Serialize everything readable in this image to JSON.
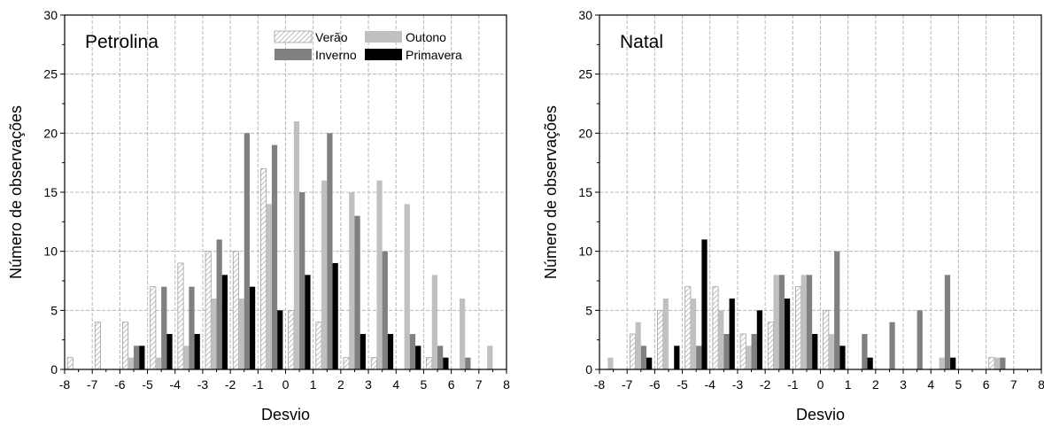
{
  "chart_data": [
    {
      "type": "bar",
      "title": "Petrolina",
      "xlabel": "Desvio",
      "ylabel": "Número de observações",
      "xlim": [
        -8,
        8
      ],
      "ylim": [
        0,
        30
      ],
      "xticks": [
        "-8",
        "-7",
        "-6",
        "-5",
        "-4",
        "-3",
        "-2",
        "-1",
        "0",
        "1",
        "2",
        "3",
        "4",
        "5",
        "6",
        "7",
        "8"
      ],
      "yticks": [
        "0",
        "5",
        "10",
        "15",
        "20",
        "25",
        "30"
      ],
      "grid": true,
      "legend_position": "top-right",
      "bin_centers": [
        -7.5,
        -6.5,
        -5.5,
        -4.5,
        -3.5,
        -2.5,
        -1.5,
        -0.5,
        0.5,
        1.5,
        2.5,
        3.5,
        4.5,
        5.5,
        6.5,
        7.5
      ],
      "series": [
        {
          "name": "Verão",
          "values": [
            1,
            4,
            4,
            7,
            9,
            10,
            10,
            17,
            5,
            4,
            1,
            1,
            0,
            1,
            0,
            0
          ]
        },
        {
          "name": "Outono",
          "values": [
            0,
            0,
            1,
            1,
            2,
            6,
            6,
            14,
            21,
            16,
            15,
            16,
            14,
            8,
            6,
            2
          ]
        },
        {
          "name": "Inverno",
          "values": [
            0,
            0,
            2,
            7,
            7,
            11,
            20,
            19,
            15,
            20,
            13,
            10,
            3,
            2,
            1,
            0
          ]
        },
        {
          "name": "Primavera",
          "values": [
            0,
            0,
            2,
            3,
            3,
            8,
            7,
            5,
            8,
            9,
            3,
            3,
            2,
            1,
            0,
            0
          ]
        }
      ]
    },
    {
      "type": "bar",
      "title": "Natal",
      "xlabel": "Desvio",
      "ylabel": "Número de observações",
      "xlim": [
        -8,
        8
      ],
      "ylim": [
        0,
        30
      ],
      "xticks": [
        "-8",
        "-7",
        "-6",
        "-5",
        "-4",
        "-3",
        "-2",
        "-1",
        "0",
        "1",
        "2",
        "3",
        "4",
        "5",
        "6",
        "7",
        "8"
      ],
      "yticks": [
        "0",
        "5",
        "10",
        "15",
        "20",
        "25",
        "30"
      ],
      "grid": true,
      "bin_centers": [
        -7.5,
        -6.5,
        -5.5,
        -4.5,
        -3.5,
        -2.5,
        -1.5,
        -0.5,
        0.5,
        1.5,
        2.5,
        3.5,
        4.5,
        5.5,
        6.5,
        7.5
      ],
      "series": [
        {
          "name": "Verão",
          "values": [
            0,
            3,
            5,
            7,
            7,
            3,
            4,
            7,
            5,
            0,
            0,
            0,
            0,
            0,
            1,
            0
          ]
        },
        {
          "name": "Outono",
          "values": [
            1,
            4,
            6,
            6,
            5,
            2,
            8,
            8,
            3,
            0,
            0,
            0,
            1,
            0,
            1,
            0
          ]
        },
        {
          "name": "Inverno",
          "values": [
            0,
            2,
            0,
            2,
            3,
            3,
            8,
            8,
            10,
            3,
            4,
            5,
            8,
            0,
            1,
            0
          ]
        },
        {
          "name": "Primavera",
          "values": [
            0,
            1,
            2,
            11,
            6,
            5,
            6,
            3,
            2,
            1,
            0,
            0,
            1,
            0,
            0,
            0
          ]
        }
      ]
    }
  ],
  "colors": {
    "Verão": "#ffffff",
    "Outono": "#c0c0c0",
    "Inverno": "#808080",
    "Primavera": "#000000",
    "verao_hatch": "#a0a0a0",
    "grid": "#b8b8b8"
  }
}
